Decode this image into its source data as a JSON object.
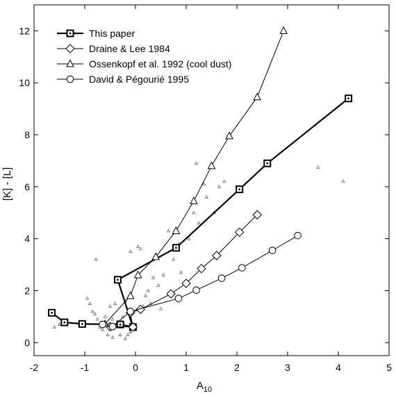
{
  "chart_data": {
    "type": "scatter",
    "xlabel": "A",
    "xlabel_sub": "10",
    "ylabel": "[K] - [L]",
    "xlim": [
      -2,
      5
    ],
    "ylim": [
      -0.5,
      13
    ],
    "xticks": [
      "-2",
      "-1",
      "0",
      "1",
      "2",
      "3",
      "4",
      "5"
    ],
    "yticks": [
      "0",
      "2",
      "4",
      "6",
      "8",
      "10",
      "12"
    ],
    "legend_position": "top-left",
    "series": [
      {
        "name": "This paper",
        "marker": "square-dot",
        "bold": true,
        "points": [
          [
            -1.65,
            1.15
          ],
          [
            -1.4,
            0.78
          ],
          [
            -1.05,
            0.72
          ],
          [
            -0.3,
            0.7
          ],
          [
            -0.05,
            0.6
          ],
          [
            -0.35,
            2.42
          ],
          [
            0.8,
            3.65
          ],
          [
            2.05,
            5.9
          ],
          [
            2.6,
            6.9
          ],
          [
            4.2,
            9.4
          ]
        ]
      },
      {
        "name": "Draine & Lee 1984",
        "marker": "diamond",
        "points": [
          [
            -0.5,
            0.62
          ],
          [
            -0.05,
            0.6
          ],
          [
            -0.1,
            1.15
          ],
          [
            0.1,
            1.28
          ],
          [
            0.7,
            1.88
          ],
          [
            1.0,
            2.28
          ],
          [
            1.3,
            2.85
          ],
          [
            1.6,
            3.35
          ],
          [
            2.05,
            4.25
          ],
          [
            2.4,
            4.92
          ]
        ]
      },
      {
        "name": "Ossenkopf et al. 1992 (cool dust)",
        "marker": "triangle",
        "points": [
          [
            -0.6,
            0.72
          ],
          [
            -0.1,
            1.8
          ],
          [
            0.05,
            2.6
          ],
          [
            0.4,
            3.3
          ],
          [
            0.8,
            4.3
          ],
          [
            1.15,
            5.45
          ],
          [
            1.5,
            6.8
          ],
          [
            1.85,
            7.95
          ],
          [
            2.4,
            9.45
          ],
          [
            2.92,
            12.0
          ]
        ]
      },
      {
        "name": "David & Pégourié 1995",
        "marker": "circle",
        "points": [
          [
            -0.65,
            0.7
          ],
          [
            -0.45,
            0.62
          ],
          [
            -0.1,
            1.2
          ],
          [
            0.85,
            1.7
          ],
          [
            1.2,
            2.02
          ],
          [
            1.7,
            2.48
          ],
          [
            2.1,
            2.88
          ],
          [
            2.7,
            3.55
          ],
          [
            3.2,
            4.12
          ]
        ]
      }
    ],
    "observations": [
      [
        -1.6,
        0.6
      ],
      [
        -1.5,
        0.7
      ],
      [
        -1.1,
        0.8
      ],
      [
        -0.95,
        1.7
      ],
      [
        -0.9,
        1.5
      ],
      [
        -0.85,
        1.2
      ],
      [
        -0.8,
        1.1
      ],
      [
        -0.75,
        0.9
      ],
      [
        -0.7,
        0.6
      ],
      [
        -0.65,
        0.5
      ],
      [
        -0.6,
        1.0
      ],
      [
        -0.55,
        0.3
      ],
      [
        -0.5,
        0.5
      ],
      [
        -0.45,
        0.9
      ],
      [
        -0.4,
        1.5
      ],
      [
        -0.35,
        0.8
      ],
      [
        -0.3,
        0.3
      ],
      [
        -0.25,
        1.0
      ],
      [
        -0.2,
        1.6
      ],
      [
        -0.15,
        0.3
      ],
      [
        -0.1,
        0.4
      ],
      [
        -0.05,
        0.5
      ],
      [
        -0.78,
        3.2
      ],
      [
        -0.5,
        1.4
      ],
      [
        -0.1,
        3.5
      ],
      [
        0.05,
        3.7
      ],
      [
        0.1,
        3.6
      ],
      [
        0.15,
        1.4
      ],
      [
        0.2,
        1.8
      ],
      [
        0.25,
        2.0
      ],
      [
        0.3,
        1.5
      ],
      [
        0.35,
        2.5
      ],
      [
        0.45,
        2.2
      ],
      [
        0.5,
        1.3
      ],
      [
        0.55,
        2.6
      ],
      [
        0.65,
        4.3
      ],
      [
        0.75,
        3.2
      ],
      [
        0.85,
        3.8
      ],
      [
        0.9,
        2.7
      ],
      [
        1.05,
        4.0
      ],
      [
        1.15,
        5.0
      ],
      [
        1.2,
        6.9
      ],
      [
        1.25,
        4.6
      ],
      [
        1.35,
        6.1
      ],
      [
        1.4,
        5.6
      ],
      [
        1.55,
        5.0
      ],
      [
        1.65,
        6.0
      ],
      [
        1.75,
        6.2
      ],
      [
        3.6,
        6.75
      ],
      [
        4.1,
        6.2
      ],
      [
        -0.45,
        0.2
      ],
      [
        -0.2,
        0.15
      ],
      [
        0.0,
        0.5
      ]
    ]
  }
}
